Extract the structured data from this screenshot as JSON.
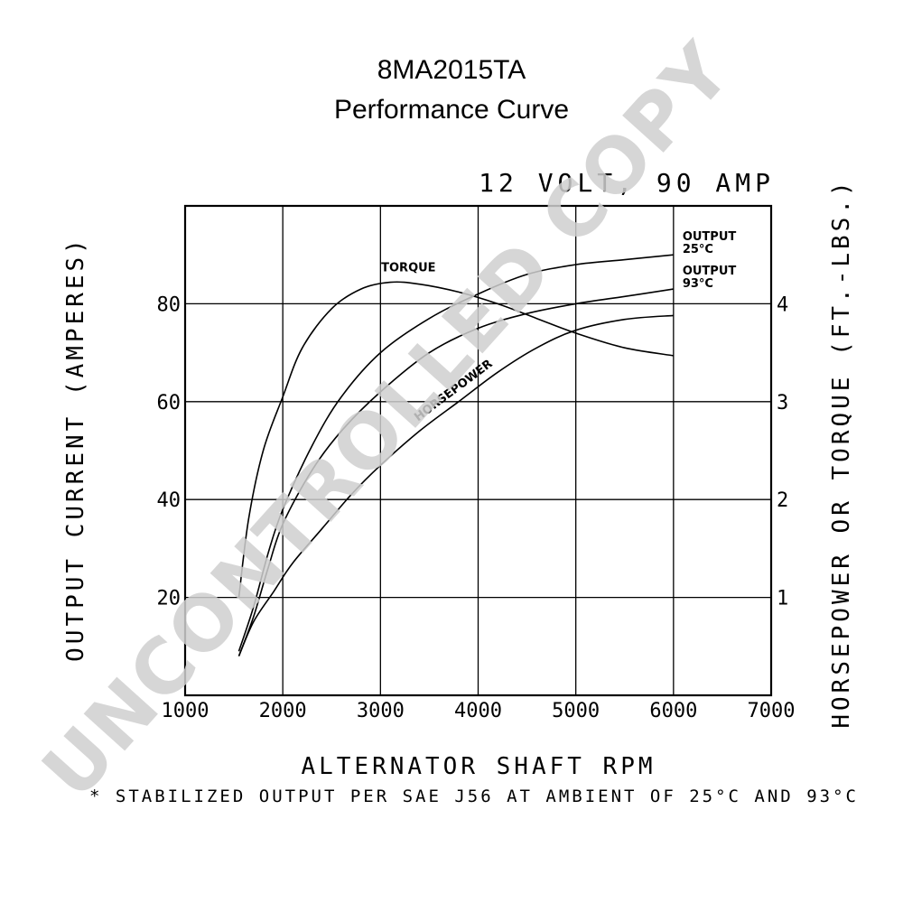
{
  "chart_data": {
    "type": "line",
    "title": "8MA2015TA",
    "subtitle": "Performance Curve",
    "rating": "12 VOLT, 90 AMP",
    "xlabel": "ALTERNATOR SHAFT RPM",
    "ylabel_left": "OUTPUT CURRENT (AMPERES)",
    "ylabel_right": "HORSEPOWER OR TORQUE (FT.-LBS.)",
    "xlim": [
      1000,
      7000
    ],
    "ylim_left": [
      0,
      100
    ],
    "ylim_right": [
      0,
      5
    ],
    "xticks": [
      {
        "value": 1000,
        "label": "1000"
      },
      {
        "value": 2000,
        "label": "2000"
      },
      {
        "value": 3000,
        "label": "3000"
      },
      {
        "value": 4000,
        "label": "4000"
      },
      {
        "value": 5000,
        "label": "5000"
      },
      {
        "value": 6000,
        "label": "6000"
      },
      {
        "value": 7000,
        "label": "7000"
      }
    ],
    "yticks_left": [
      {
        "value": 20,
        "label": "20"
      },
      {
        "value": 40,
        "label": "40"
      },
      {
        "value": 60,
        "label": "60"
      },
      {
        "value": 80,
        "label": "80"
      }
    ],
    "yticks_right": [
      {
        "value": 1,
        "label": "1"
      },
      {
        "value": 2,
        "label": "2"
      },
      {
        "value": 3,
        "label": "3"
      },
      {
        "value": 4,
        "label": "4"
      }
    ],
    "grid": true,
    "series": [
      {
        "name": "OUTPUT 25°C",
        "label_lines": [
          "OUTPUT",
          "25°C"
        ],
        "axis": "left",
        "x": [
          1550,
          1700,
          1850,
          2000,
          2300,
          2600,
          3000,
          3500,
          4000,
          4500,
          5000,
          5500,
          6000
        ],
        "y": [
          9,
          18,
          29,
          38,
          51,
          61,
          70,
          77,
          82,
          86,
          88,
          89,
          90
        ]
      },
      {
        "name": "OUTPUT 93°C",
        "label_lines": [
          "OUTPUT",
          "93°C"
        ],
        "axis": "left",
        "x": [
          1550,
          1700,
          1850,
          2000,
          2300,
          2600,
          3000,
          3500,
          4000,
          4500,
          5000,
          5500,
          6000
        ],
        "y": [
          8,
          16,
          26,
          35,
          46,
          54,
          62,
          70,
          75,
          78,
          80,
          81.5,
          83
        ]
      },
      {
        "name": "TORQUE",
        "label_lines": [
          "TORQUE"
        ],
        "axis": "right",
        "x": [
          1550,
          1650,
          1800,
          2000,
          2200,
          2500,
          2800,
          3100,
          3400,
          3800,
          4200,
          4600,
          5000,
          5500,
          6000
        ],
        "y": [
          1.0,
          1.8,
          2.5,
          3.05,
          3.55,
          3.95,
          4.15,
          4.22,
          4.2,
          4.12,
          4.0,
          3.85,
          3.7,
          3.55,
          3.47
        ]
      },
      {
        "name": "HORSEPOWER",
        "label_lines": [
          "HORSEPOWER"
        ],
        "axis": "right",
        "x": [
          1550,
          1700,
          1900,
          2100,
          2400,
          2700,
          3000,
          3400,
          3800,
          4200,
          4600,
          5000,
          5500,
          6000
        ],
        "y": [
          0.4,
          0.75,
          1.05,
          1.35,
          1.7,
          2.05,
          2.35,
          2.7,
          3.0,
          3.3,
          3.55,
          3.73,
          3.84,
          3.88
        ]
      }
    ]
  },
  "footnote": "* STABILIZED OUTPUT PER SAE J56 AT AMBIENT OF 25°C AND 93°C",
  "watermark": "UNCONTROLLED COPY"
}
